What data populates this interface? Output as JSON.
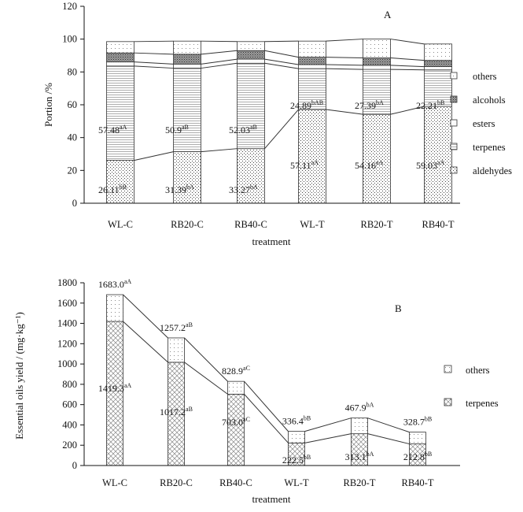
{
  "chart_data": [
    {
      "type": "bar",
      "stacked": true,
      "panel": "A",
      "ylabel": "Portion /%",
      "xlabel": "treatment",
      "ylim": [
        0,
        120
      ],
      "yticks": [
        0,
        20,
        40,
        60,
        80,
        100,
        120
      ],
      "categories": [
        "WL-C",
        "RB20-C",
        "RB40-C",
        "WL-T",
        "RB20-T",
        "RB40-T"
      ],
      "legend_position": "right",
      "series": [
        {
          "name": "aldehydes",
          "values": [
            26.11,
            31.39,
            33.27,
            57.11,
            54.16,
            59.03
          ],
          "labels": [
            "26.11",
            "31.39",
            "33.27",
            "57.11",
            "54.16",
            "59.03"
          ],
          "sup": [
            "bB",
            "bA",
            "bA",
            "aA",
            "aA",
            "aA"
          ],
          "pattern": "dots"
        },
        {
          "name": "terpenes",
          "values": [
            57.48,
            50.9,
            52.03,
            24.89,
            27.39,
            22.21
          ],
          "labels": [
            "57.48",
            "50.9",
            "52.03",
            "24.89",
            "27.39",
            "22.21"
          ],
          "sup": [
            "aA",
            "aB",
            "aB",
            "bAB",
            "bA",
            "bB"
          ],
          "pattern": "hlines"
        },
        {
          "name": "esters",
          "values": [
            2.5,
            2.5,
            2.5,
            2.5,
            2.5,
            2.0
          ],
          "pattern": "blank"
        },
        {
          "name": "alcohols",
          "values": [
            5.5,
            6.0,
            5.2,
            4.5,
            4.5,
            3.8
          ],
          "pattern": "dense"
        },
        {
          "name": "others",
          "values": [
            6.9,
            8.0,
            5.5,
            9.8,
            11.5,
            10.0
          ],
          "pattern": "sparse"
        }
      ]
    },
    {
      "type": "bar",
      "stacked": true,
      "panel": "B",
      "ylabel": "Essential oils yield / (mg·kg⁻¹)",
      "xlabel": "treatment",
      "ylim": [
        0,
        1800
      ],
      "yticks": [
        0,
        200,
        400,
        600,
        800,
        1000,
        1200,
        1400,
        1600,
        1800
      ],
      "categories": [
        "WL-C",
        "RB20-C",
        "RB40-C",
        "WL-T",
        "RB20-T",
        "RB40-T"
      ],
      "legend_position": "right",
      "series": [
        {
          "name": "terpenes",
          "values": [
            1419.3,
            1017.2,
            703.0,
            222.5,
            313.1,
            212.8
          ],
          "labels": [
            "1419.3",
            "1017.2",
            "703.0",
            "222.5",
            "313.1",
            "212.8"
          ],
          "sup": [
            "aA",
            "aB",
            "aC",
            "bB",
            "bA",
            "bB"
          ],
          "pattern": "cross"
        },
        {
          "name": "others",
          "values": [
            263.7,
            240.0,
            125.9,
            113.9,
            154.8,
            115.9
          ],
          "pattern": "sparse"
        }
      ],
      "totals": [
        1683.0,
        1257.2,
        828.9,
        336.4,
        467.9,
        328.7
      ],
      "total_labels": [
        "1683.0",
        "1257.2",
        "828.9",
        "336.4",
        "467.9",
        "328.7"
      ],
      "total_sup": [
        "aA",
        "aB",
        "aC",
        "bB",
        "bA",
        "bB"
      ]
    }
  ]
}
